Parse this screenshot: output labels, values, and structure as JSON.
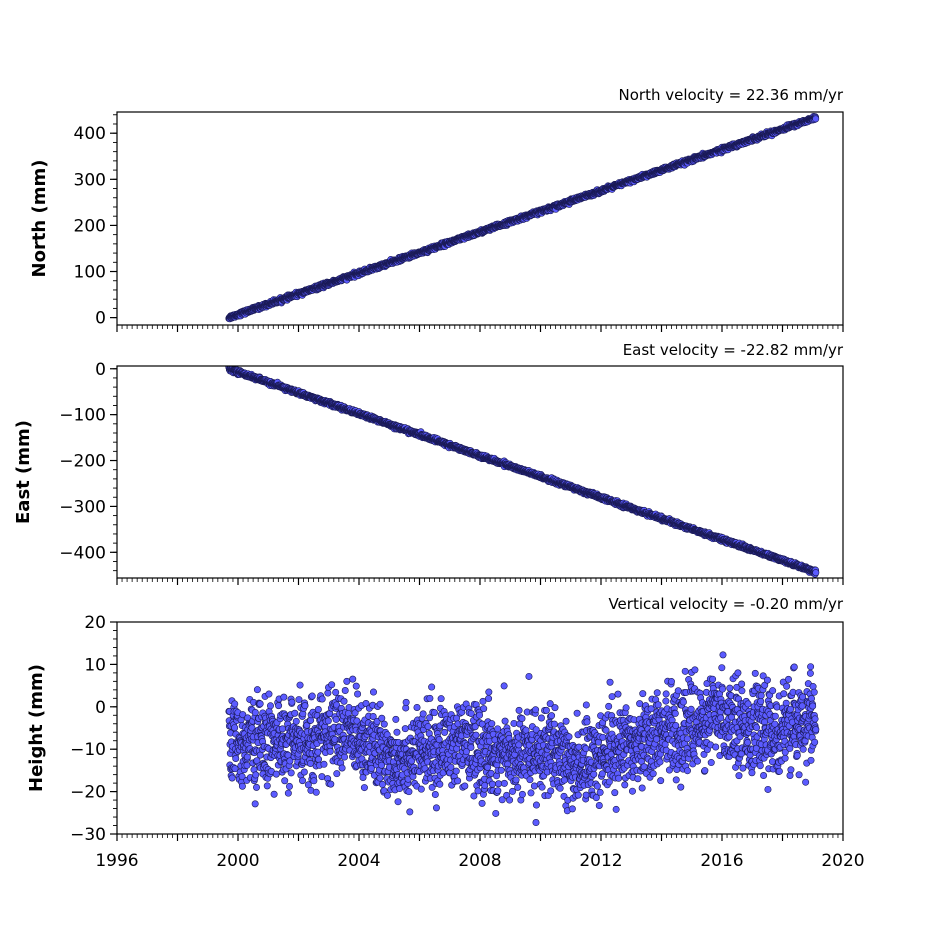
{
  "colors": {
    "marker_fill": "#5b5bff",
    "marker_edge": "#1a1a55",
    "axes": "#000000",
    "background": "#ffffff"
  },
  "chart_data": [
    {
      "type": "scatter",
      "title": "North velocity = 22.36 mm/yr",
      "xlabel": "",
      "ylabel": "North (mm)",
      "xlim": [
        1996,
        2020
      ],
      "ylim": [
        -16,
        446
      ],
      "yticks": [
        0,
        100,
        200,
        300,
        400
      ],
      "ytick_labels": [
        "0",
        "100",
        "200",
        "300",
        "400"
      ],
      "xtick_labels": [],
      "series": [
        {
          "x_range": [
            1999.7,
            2019.1
          ],
          "trend_intercept_at_start": 0,
          "trend_rate": 22.36,
          "scatter_std": 2
        }
      ]
    },
    {
      "type": "scatter",
      "title": "East velocity = -22.82 mm/yr",
      "xlabel": "",
      "ylabel": "East (mm)",
      "xlim": [
        1996,
        2020
      ],
      "ylim": [
        -456,
        6
      ],
      "yticks": [
        0,
        -100,
        -200,
        -300,
        -400
      ],
      "ytick_labels": [
        "0",
        "−100",
        "−200",
        "−300",
        "−400"
      ],
      "xtick_labels": [],
      "series": [
        {
          "x_range": [
            1999.7,
            2019.1
          ],
          "trend_intercept_at_start": 0,
          "trend_rate": -22.82,
          "scatter_std": 2
        }
      ]
    },
    {
      "type": "scatter",
      "title": "Vertical velocity = -0.20 mm/yr",
      "xlabel": "",
      "ylabel": "Height (mm)",
      "xlim": [
        1996,
        2020
      ],
      "ylim": [
        -30,
        20
      ],
      "yticks": [
        -30,
        -20,
        -10,
        0,
        10,
        20
      ],
      "ytick_labels": [
        "−30",
        "−20",
        "−10",
        "0",
        "10",
        "20"
      ],
      "xticks": [
        1996,
        2000,
        2004,
        2008,
        2012,
        2016,
        2020
      ],
      "xtick_labels": [
        "1996",
        "2000",
        "2004",
        "2008",
        "2012",
        "2016",
        "2020"
      ],
      "series": [
        {
          "x_range": [
            1999.7,
            2019.1
          ],
          "mean_level_by_year": [
            [
              1999.7,
              -9
            ],
            [
              2001,
              -8
            ],
            [
              2002,
              -9
            ],
            [
              2003,
              -6
            ],
            [
              2004,
              -6
            ],
            [
              2004.8,
              -12
            ],
            [
              2006,
              -11
            ],
            [
              2007,
              -9
            ],
            [
              2008,
              -10
            ],
            [
              2009,
              -12
            ],
            [
              2010,
              -10
            ],
            [
              2011,
              -14
            ],
            [
              2012,
              -11
            ],
            [
              2013,
              -8
            ],
            [
              2014,
              -6
            ],
            [
              2015,
              -5
            ],
            [
              2016,
              -2
            ],
            [
              2017,
              -5
            ],
            [
              2018,
              -6
            ],
            [
              2019.1,
              -2
            ]
          ],
          "scatter_std": 5
        }
      ]
    }
  ]
}
